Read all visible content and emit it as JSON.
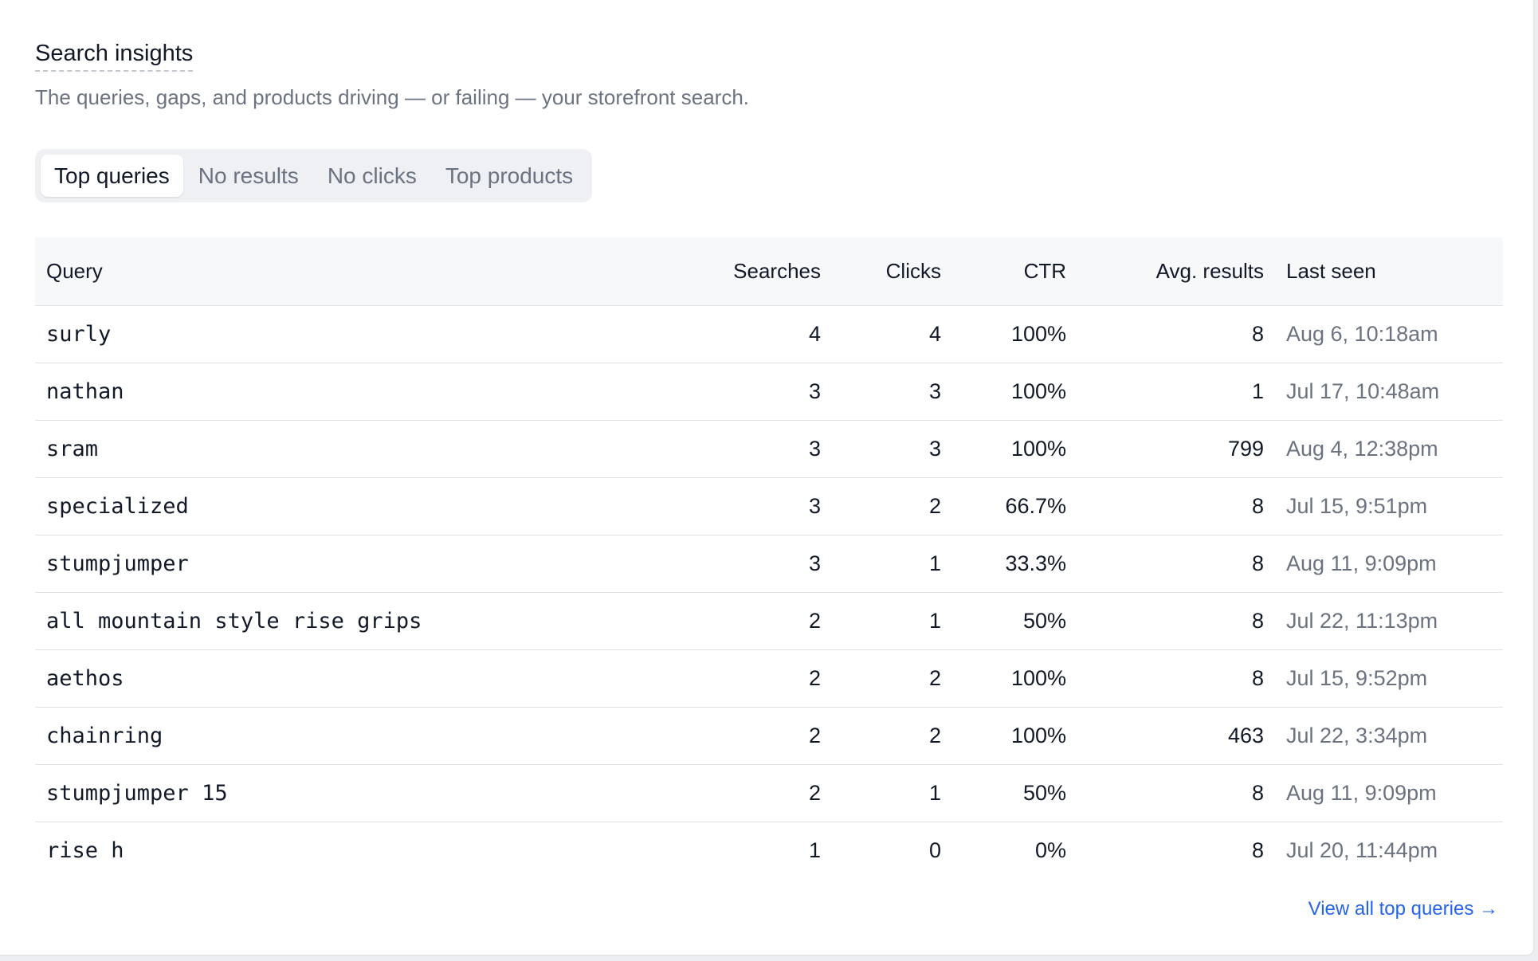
{
  "header": {
    "title": "Search insights",
    "subtitle": "The queries, gaps, and products driving — or failing — your storefront search."
  },
  "tabs": [
    {
      "label": "Top queries",
      "active": true
    },
    {
      "label": "No results",
      "active": false
    },
    {
      "label": "No clicks",
      "active": false
    },
    {
      "label": "Top products",
      "active": false
    }
  ],
  "table": {
    "columns": [
      "Query",
      "Searches",
      "Clicks",
      "CTR",
      "Avg. results",
      "Last seen"
    ],
    "rows": [
      {
        "query": "surly",
        "searches": "4",
        "clicks": "4",
        "ctr": "100%",
        "avg_results": "8",
        "last_seen": "Aug 6, 10:18am"
      },
      {
        "query": "nathan",
        "searches": "3",
        "clicks": "3",
        "ctr": "100%",
        "avg_results": "1",
        "last_seen": "Jul 17, 10:48am"
      },
      {
        "query": "sram",
        "searches": "3",
        "clicks": "3",
        "ctr": "100%",
        "avg_results": "799",
        "last_seen": "Aug 4, 12:38pm"
      },
      {
        "query": "specialized",
        "searches": "3",
        "clicks": "2",
        "ctr": "66.7%",
        "avg_results": "8",
        "last_seen": "Jul 15, 9:51pm"
      },
      {
        "query": "stumpjumper",
        "searches": "3",
        "clicks": "1",
        "ctr": "33.3%",
        "avg_results": "8",
        "last_seen": "Aug 11, 9:09pm"
      },
      {
        "query": "all mountain style rise grips",
        "searches": "2",
        "clicks": "1",
        "ctr": "50%",
        "avg_results": "8",
        "last_seen": "Jul 22, 11:13pm"
      },
      {
        "query": "aethos",
        "searches": "2",
        "clicks": "2",
        "ctr": "100%",
        "avg_results": "8",
        "last_seen": "Jul 15, 9:52pm"
      },
      {
        "query": "chainring",
        "searches": "2",
        "clicks": "2",
        "ctr": "100%",
        "avg_results": "463",
        "last_seen": "Jul 22, 3:34pm"
      },
      {
        "query": "stumpjumper 15",
        "searches": "2",
        "clicks": "1",
        "ctr": "50%",
        "avg_results": "8",
        "last_seen": "Aug 11, 9:09pm"
      },
      {
        "query": "rise h",
        "searches": "1",
        "clicks": "0",
        "ctr": "0%",
        "avg_results": "8",
        "last_seen": "Jul 20, 11:44pm"
      }
    ]
  },
  "footer": {
    "view_all_label": "View all top queries →"
  },
  "colors": {
    "accent_link": "#2563eb",
    "muted_text": "#6b7280",
    "text": "#111827",
    "header_bg": "#f7f8fa",
    "tabs_bg": "#eef0f3"
  }
}
